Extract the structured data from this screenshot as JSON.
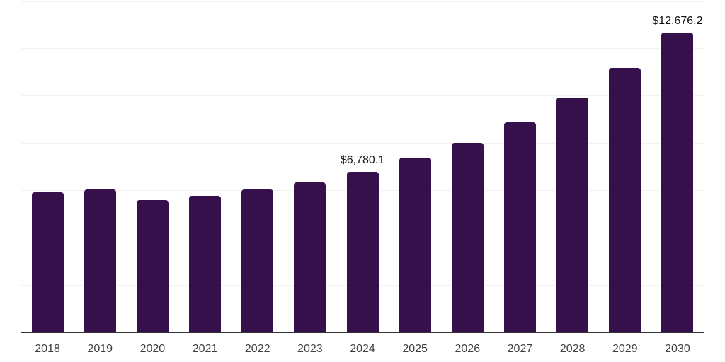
{
  "chart_data": {
    "type": "bar",
    "title": "",
    "xlabel": "",
    "ylabel": "",
    "categories": [
      "2018",
      "2019",
      "2020",
      "2021",
      "2022",
      "2023",
      "2024",
      "2025",
      "2026",
      "2027",
      "2028",
      "2029",
      "2030"
    ],
    "values": [
      5920,
      6040,
      5590,
      5770,
      6040,
      6340,
      6780.1,
      7390,
      8010,
      8880,
      9930,
      11180,
      12676.2
    ],
    "point_labels": [
      "",
      "",
      "",
      "",
      "",
      "",
      "$6,780.1",
      "",
      "",
      "",
      "",
      "",
      "$12,676.2"
    ],
    "ylim": [
      0,
      14000
    ],
    "gridline_step": 2000,
    "grid": "horizontal",
    "legend": "none",
    "colors": {
      "bar": "#36104B",
      "gridline": "#f2f2f2",
      "axis_line": "#333333",
      "tick_label": "#404040",
      "value_label": "#111111",
      "background": "#ffffff"
    }
  }
}
